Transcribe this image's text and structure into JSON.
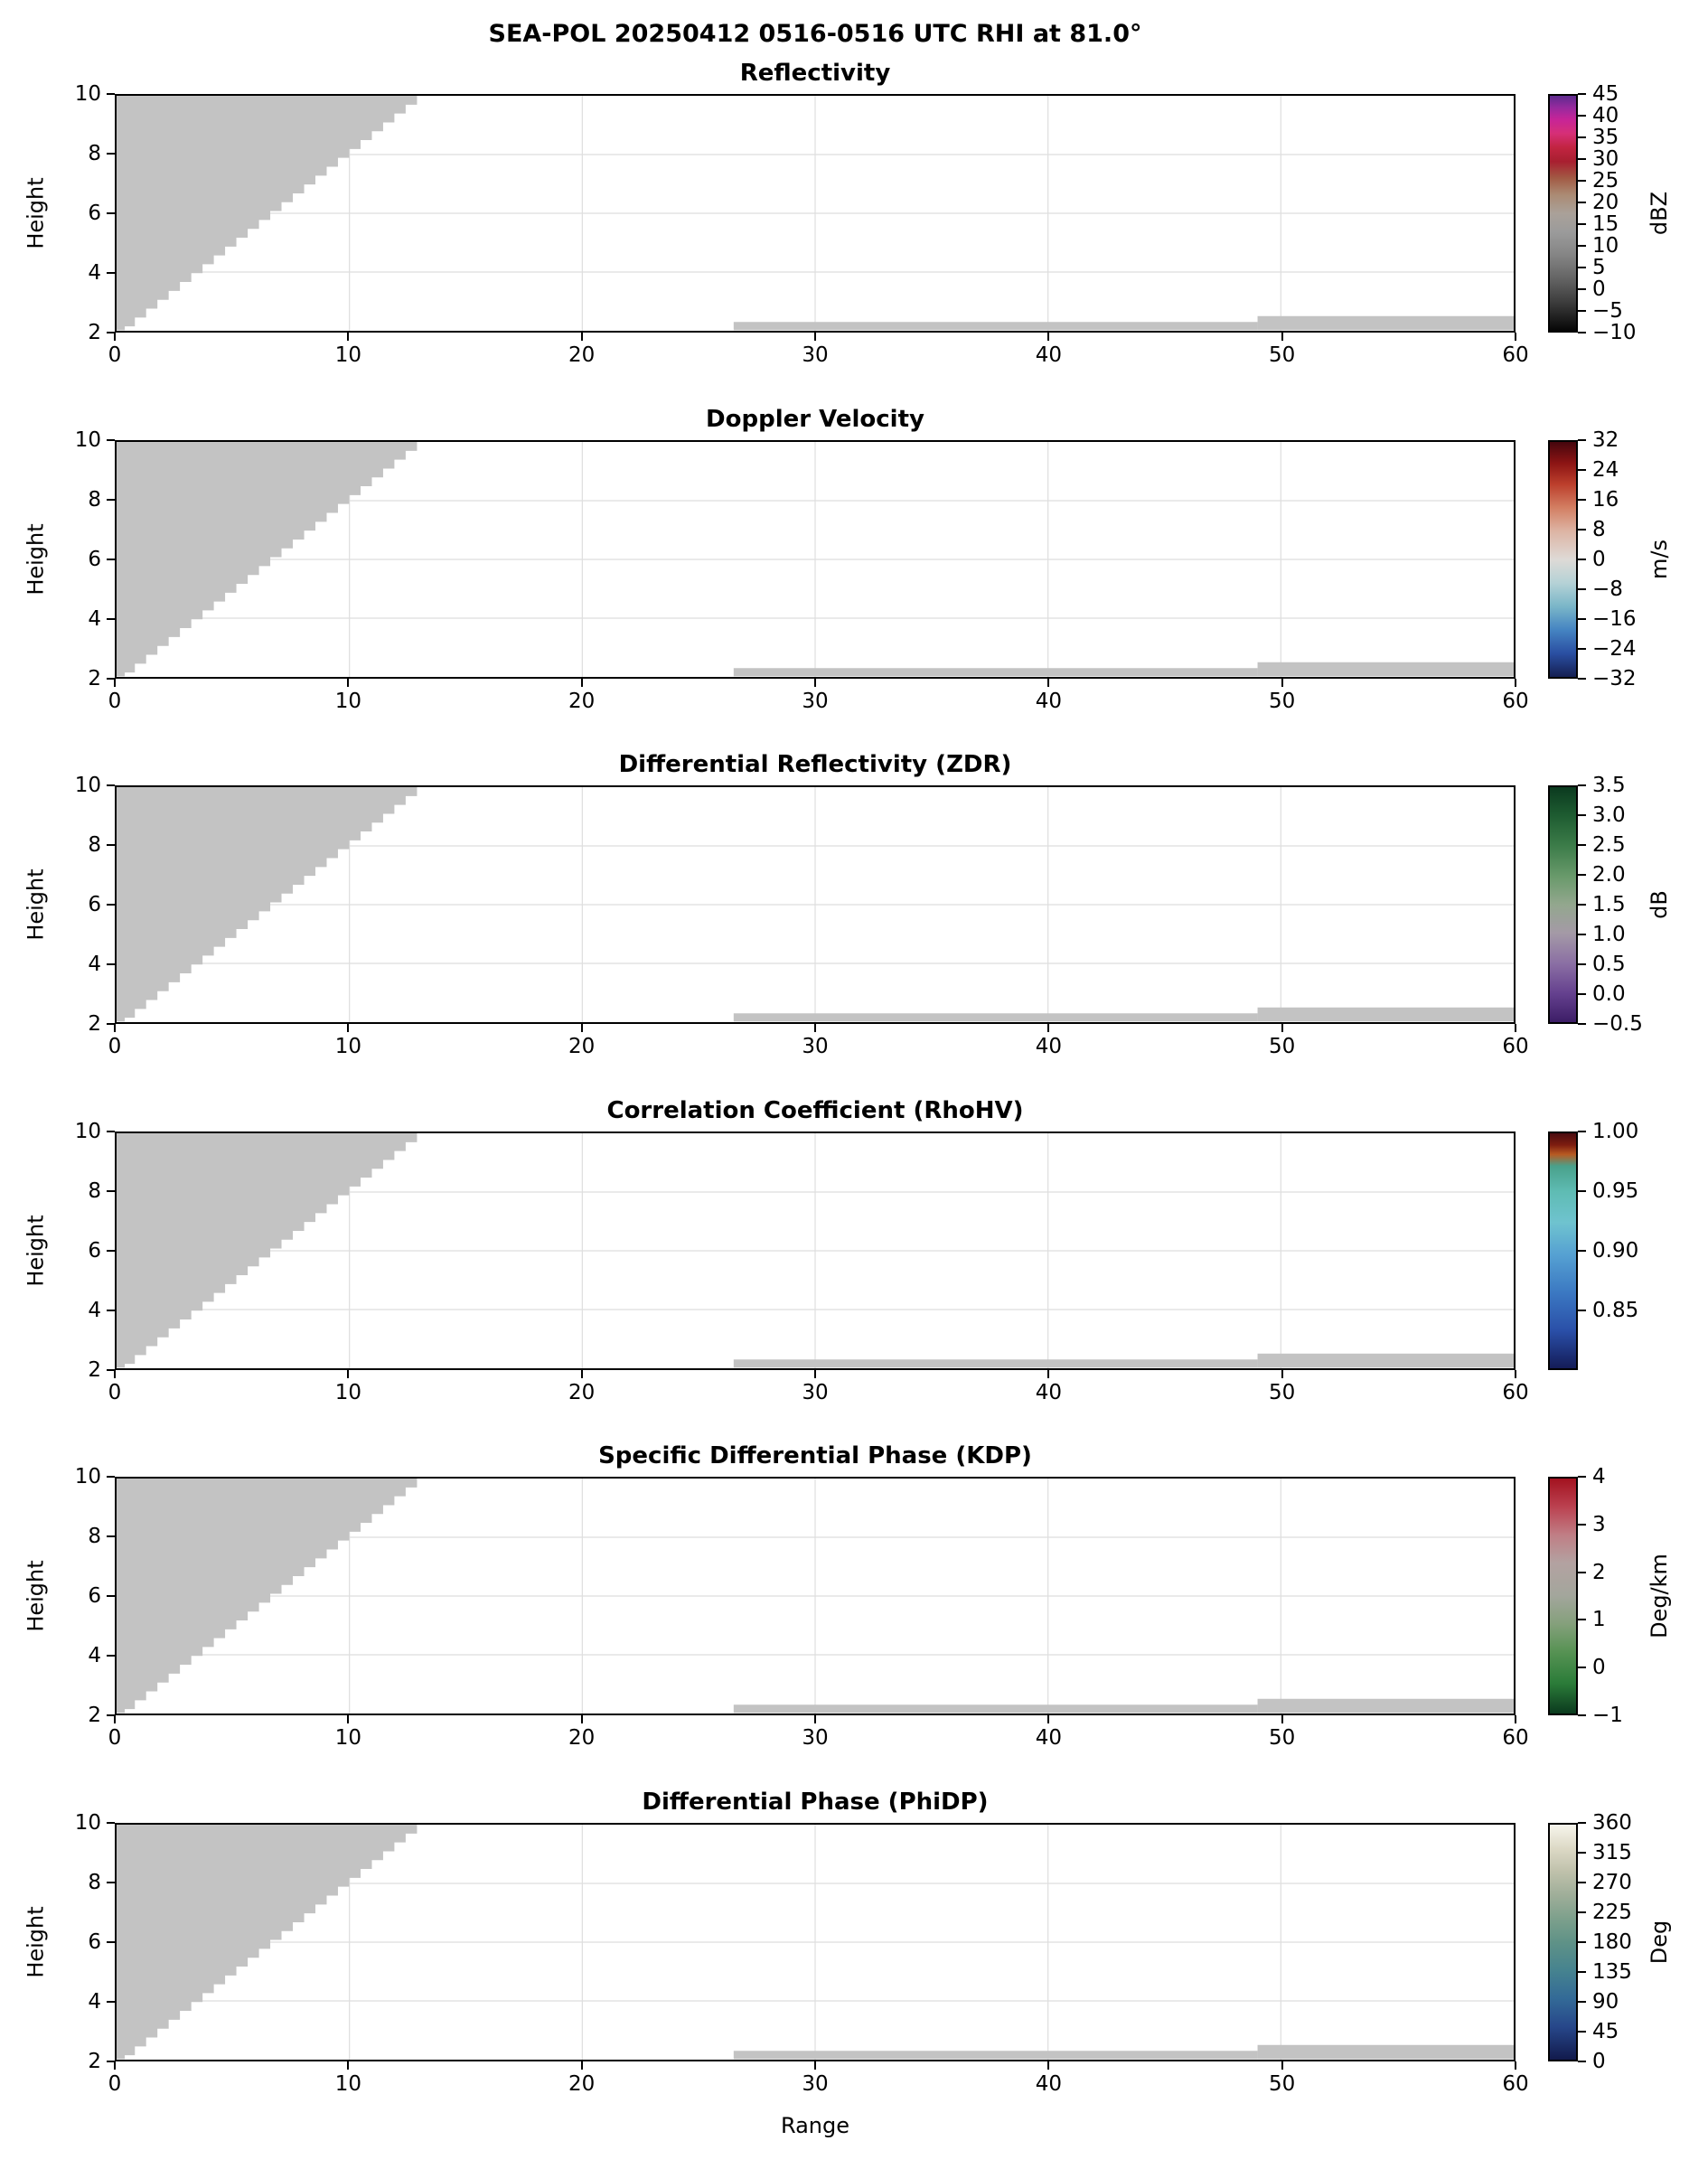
{
  "chart_data": {
    "type": "heatmap",
    "title": "SEA-POL 20250412 0516-0516 UTC RHI at 81.0°",
    "xlabel": "Range",
    "ylabel": "Height",
    "x_range": [
      0,
      60
    ],
    "y_range": [
      2,
      10
    ],
    "x_ticks": [
      0,
      10,
      20,
      30,
      40,
      50,
      60
    ],
    "y_ticks": [
      2,
      4,
      6,
      8,
      10
    ],
    "grid": true,
    "no_data_color": "#c3c3c3",
    "no_data_regions": {
      "wedge": {
        "comment": "stair-stepped gray masked wedge in upper-left of every panel",
        "x_top": 12.9,
        "y_top": 10,
        "x_bottom": 0.3,
        "y_bottom": 2.15,
        "steps": 26
      },
      "strips": [
        {
          "x0": 0.0,
          "x1": 0.35,
          "y0": 2.02,
          "y1": 2.2
        },
        {
          "x0": 26.5,
          "x1": 49.0,
          "y0": 2.02,
          "y1": 2.3
        },
        {
          "x0": 49.0,
          "x1": 60.0,
          "y0": 2.02,
          "y1": 2.5
        }
      ]
    },
    "panels": [
      {
        "title": "Reflectivity",
        "unit": "dBZ",
        "cb_ticks": [
          [
            "45",
            0
          ],
          [
            "40",
            0.0909
          ],
          [
            "35",
            0.1818
          ],
          [
            "30",
            0.2727
          ],
          [
            "25",
            0.3636
          ],
          [
            "20",
            0.4545
          ],
          [
            "15",
            0.5455
          ],
          [
            "10",
            0.6364
          ],
          [
            "5",
            0.7273
          ],
          [
            "0",
            0.8182
          ],
          [
            "−5",
            0.9091
          ],
          [
            "−10",
            1
          ]
        ],
        "cb_stops": [
          [
            0,
            "#5e2b8e"
          ],
          [
            0.05,
            "#962a9e"
          ],
          [
            0.1,
            "#c62498"
          ],
          [
            0.16,
            "#d62f77"
          ],
          [
            0.22,
            "#c22441"
          ],
          [
            0.28,
            "#a81f30"
          ],
          [
            0.35,
            "#a25a44"
          ],
          [
            0.42,
            "#ab8a73"
          ],
          [
            0.5,
            "#aaa199"
          ],
          [
            0.58,
            "#9b9b9b"
          ],
          [
            0.68,
            "#848484"
          ],
          [
            0.78,
            "#636363"
          ],
          [
            0.88,
            "#3c3c3c"
          ],
          [
            1,
            "#060606"
          ]
        ]
      },
      {
        "title": "Doppler Velocity",
        "unit": "m/s",
        "cb_ticks": [
          [
            "32",
            0
          ],
          [
            "24",
            0.125
          ],
          [
            "16",
            0.25
          ],
          [
            "8",
            0.375
          ],
          [
            "0",
            0.5
          ],
          [
            "−8",
            0.625
          ],
          [
            "−16",
            0.75
          ],
          [
            "−24",
            0.875
          ],
          [
            "−32",
            1
          ]
        ],
        "cb_stops": [
          [
            0,
            "#45060d"
          ],
          [
            0.09,
            "#8c1414"
          ],
          [
            0.18,
            "#bc3f2c"
          ],
          [
            0.28,
            "#d37f63"
          ],
          [
            0.38,
            "#ddb4a4"
          ],
          [
            0.5,
            "#dedad6"
          ],
          [
            0.6,
            "#b5d2d6"
          ],
          [
            0.7,
            "#7ab6c8"
          ],
          [
            0.8,
            "#4584c2"
          ],
          [
            0.9,
            "#2a4fa2"
          ],
          [
            1,
            "#151f52"
          ]
        ]
      },
      {
        "title": "Differential Reflectivity (ZDR)",
        "unit": "dB",
        "cb_ticks": [
          [
            "3.5",
            0
          ],
          [
            "3.0",
            0.125
          ],
          [
            "2.5",
            0.25
          ],
          [
            "2.0",
            0.375
          ],
          [
            "1.5",
            0.5
          ],
          [
            "1.0",
            0.625
          ],
          [
            "0.5",
            0.75
          ],
          [
            "0.0",
            0.875
          ],
          [
            "−0.5",
            1
          ]
        ],
        "cb_stops": [
          [
            0,
            "#0b3a1f"
          ],
          [
            0.12,
            "#1e5c31"
          ],
          [
            0.25,
            "#3c7c49"
          ],
          [
            0.38,
            "#699a6b"
          ],
          [
            0.5,
            "#93a78e"
          ],
          [
            0.62,
            "#a49aa6"
          ],
          [
            0.75,
            "#8b6fa4"
          ],
          [
            0.88,
            "#64408e"
          ],
          [
            1,
            "#3c1d66"
          ]
        ]
      },
      {
        "title": "Correlation Coefficient (RhoHV)",
        "unit": "",
        "cb_ticks": [
          [
            "1.00",
            0
          ],
          [
            "0.95",
            0.25
          ],
          [
            "0.90",
            0.5
          ],
          [
            "0.85",
            0.75
          ]
        ],
        "cb_stops": [
          [
            0,
            "#4a0c10"
          ],
          [
            0.05,
            "#7e1d10"
          ],
          [
            0.09,
            "#b85a22"
          ],
          [
            0.14,
            "#49a18b"
          ],
          [
            0.25,
            "#5fbcb4"
          ],
          [
            0.38,
            "#6fc3cf"
          ],
          [
            0.52,
            "#55a0d2"
          ],
          [
            0.68,
            "#3b78c2"
          ],
          [
            0.84,
            "#2a4fa8"
          ],
          [
            1,
            "#141c58"
          ]
        ]
      },
      {
        "title": "Specific Differential Phase (KDP)",
        "unit": "Deg/km",
        "cb_ticks": [
          [
            "4",
            0
          ],
          [
            "3",
            0.2
          ],
          [
            "2",
            0.4
          ],
          [
            "1",
            0.6
          ],
          [
            "0",
            0.8
          ],
          [
            "−1",
            1
          ]
        ],
        "cb_stops": [
          [
            0,
            "#a3121f"
          ],
          [
            0.12,
            "#bb4150"
          ],
          [
            0.24,
            "#c07e85"
          ],
          [
            0.36,
            "#b3a2a1"
          ],
          [
            0.5,
            "#a3a69c"
          ],
          [
            0.62,
            "#84a07b"
          ],
          [
            0.74,
            "#569253"
          ],
          [
            0.87,
            "#2b7c39"
          ],
          [
            1,
            "#0b3a1e"
          ]
        ]
      },
      {
        "title": "Differential Phase (PhiDP)",
        "unit": "Deg",
        "cb_ticks": [
          [
            "360",
            0
          ],
          [
            "315",
            0.125
          ],
          [
            "270",
            0.25
          ],
          [
            "225",
            0.375
          ],
          [
            "180",
            0.5
          ],
          [
            "135",
            0.625
          ],
          [
            "90",
            0.75
          ],
          [
            "45",
            0.875
          ],
          [
            "0",
            1
          ]
        ],
        "cb_stops": [
          [
            0,
            "#f6f5ec"
          ],
          [
            0.1,
            "#ddd9c6"
          ],
          [
            0.2,
            "#bfc1ab"
          ],
          [
            0.3,
            "#9fae99"
          ],
          [
            0.4,
            "#7da08c"
          ],
          [
            0.5,
            "#5f9287"
          ],
          [
            0.62,
            "#46838f"
          ],
          [
            0.74,
            "#336a97"
          ],
          [
            0.86,
            "#27478a"
          ],
          [
            1,
            "#121a4c"
          ]
        ]
      }
    ]
  }
}
